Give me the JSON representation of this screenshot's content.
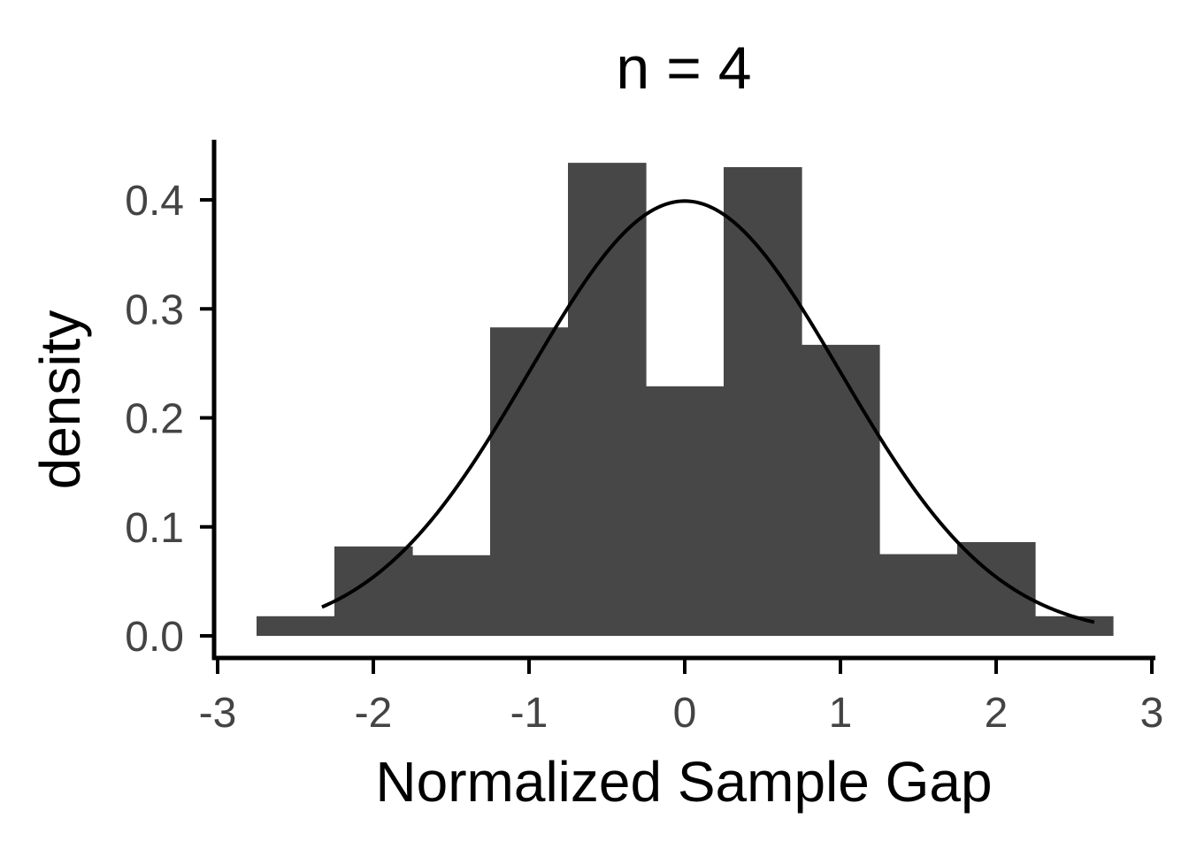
{
  "chart_data": {
    "type": "bar",
    "title": "n = 4",
    "xlabel": "Normalized Sample Gap",
    "ylabel": "density",
    "xlim": [
      -3,
      3
    ],
    "ylim": [
      0,
      0.45
    ],
    "x_ticks": [
      "-3",
      "-2",
      "-1",
      "0",
      "1",
      "2",
      "3"
    ],
    "y_ticks": [
      "0.0",
      "0.1",
      "0.2",
      "0.3",
      "0.4"
    ],
    "grid": false,
    "bar_color": "#474747",
    "bin_width": 0.5,
    "bins": [
      {
        "x0": -2.75,
        "x1": -2.25,
        "value": 0.018
      },
      {
        "x0": -2.25,
        "x1": -1.75,
        "value": 0.082
      },
      {
        "x0": -1.75,
        "x1": -1.25,
        "value": 0.074
      },
      {
        "x0": -1.25,
        "x1": -0.75,
        "value": 0.283
      },
      {
        "x0": -0.75,
        "x1": -0.25,
        "value": 0.434
      },
      {
        "x0": -0.25,
        "x1": 0.25,
        "value": 0.229
      },
      {
        "x0": 0.25,
        "x1": 0.75,
        "value": 0.43
      },
      {
        "x0": 0.75,
        "x1": 1.25,
        "value": 0.267
      },
      {
        "x0": 1.25,
        "x1": 1.75,
        "value": 0.075
      },
      {
        "x0": 1.75,
        "x1": 2.25,
        "value": 0.086
      },
      {
        "x0": 2.25,
        "x1": 2.75,
        "value": 0.018
      }
    ],
    "curve": {
      "type": "normal-density",
      "mean": 0,
      "sd": 1,
      "x_range": [
        -2.33,
        2.63
      ],
      "color": "#000000"
    }
  }
}
